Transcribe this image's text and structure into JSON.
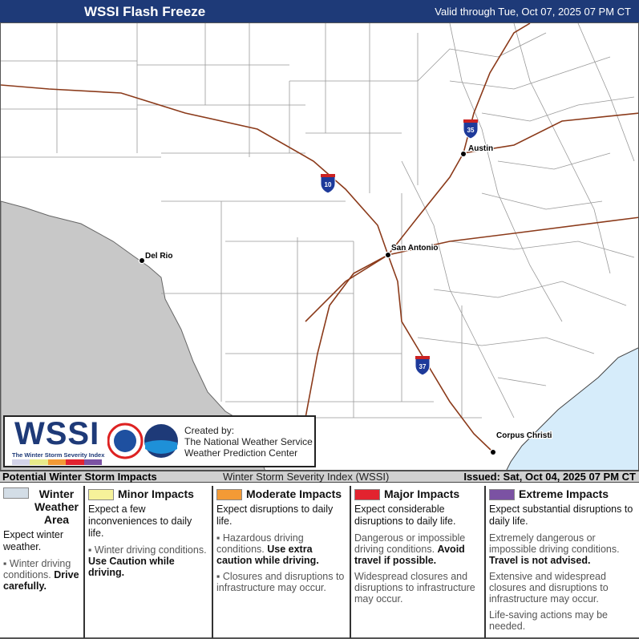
{
  "header": {
    "title": "WSSI Flash Freeze",
    "valid": "Valid through Tue, Oct 07, 2025 07 PM CT"
  },
  "map": {
    "colors": {
      "mexico": "#c8c8c8",
      "gulf": "#d6ecfa",
      "roads": "#8b3a1a",
      "counties": "#999999"
    },
    "cities": [
      {
        "name": "Austin"
      },
      {
        "name": "San Antonio"
      },
      {
        "name": "Del Rio"
      },
      {
        "name": "Corpus Christi"
      }
    ],
    "interstates": [
      {
        "number": "35"
      },
      {
        "number": "10"
      },
      {
        "number": "37"
      }
    ]
  },
  "logo": {
    "wordmark": "WSSI",
    "subtitle": "The Winter Storm Severity Index",
    "credits": [
      "Created by:",
      "The National Weather Service",
      "Weather Prediction Center"
    ]
  },
  "statusbar": {
    "left": "Potential Winter Storm Impacts",
    "middle": "Winter Storm Severity Index (WSSI)",
    "right": "Issued: Sat, Oct 04, 2025 07 PM CT"
  },
  "legend": [
    {
      "color": "#d3dde6",
      "title": "Winter Weather Area",
      "expect": "Expect winter weather.",
      "bullets": [
        {
          "text": "Winter driving conditions.",
          "bold": "Drive carefully."
        }
      ]
    },
    {
      "color": "#f6f29a",
      "title": "Minor Impacts",
      "expect": "Expect a few inconveniences to daily life.",
      "bullets": [
        {
          "text": "Winter driving conditions.",
          "bold": "Use Caution while driving."
        }
      ]
    },
    {
      "color": "#f39a35",
      "title": "Moderate Impacts",
      "expect": "Expect disruptions to daily life.",
      "bullets": [
        {
          "text": "Hazardous driving conditions.",
          "bold": "Use extra caution while driving."
        },
        {
          "text": "Closures and disruptions to infrastructure may occur.",
          "bold": ""
        }
      ]
    },
    {
      "color": "#e2232f",
      "title": "Major Impacts",
      "expect": "Expect considerable disruptions to daily life.",
      "bullets": [
        {
          "text": "Dangerous or impossible driving conditions.",
          "bold": "Avoid travel if possible."
        },
        {
          "text": "Widespread closures and disruptions to infrastructure may occur.",
          "bold": ""
        }
      ]
    },
    {
      "color": "#7b52a3",
      "title": "Extreme Impacts",
      "expect": "Expect substantial disruptions to daily life.",
      "bullets": [
        {
          "text": "Extremely dangerous or impossible driving conditions.",
          "bold": "Travel is not advised."
        },
        {
          "text": "Extensive and widespread closures and disruptions to infrastructure may occur.",
          "bold": ""
        },
        {
          "text": "Life-saving actions may be needed.",
          "bold": ""
        }
      ]
    }
  ]
}
